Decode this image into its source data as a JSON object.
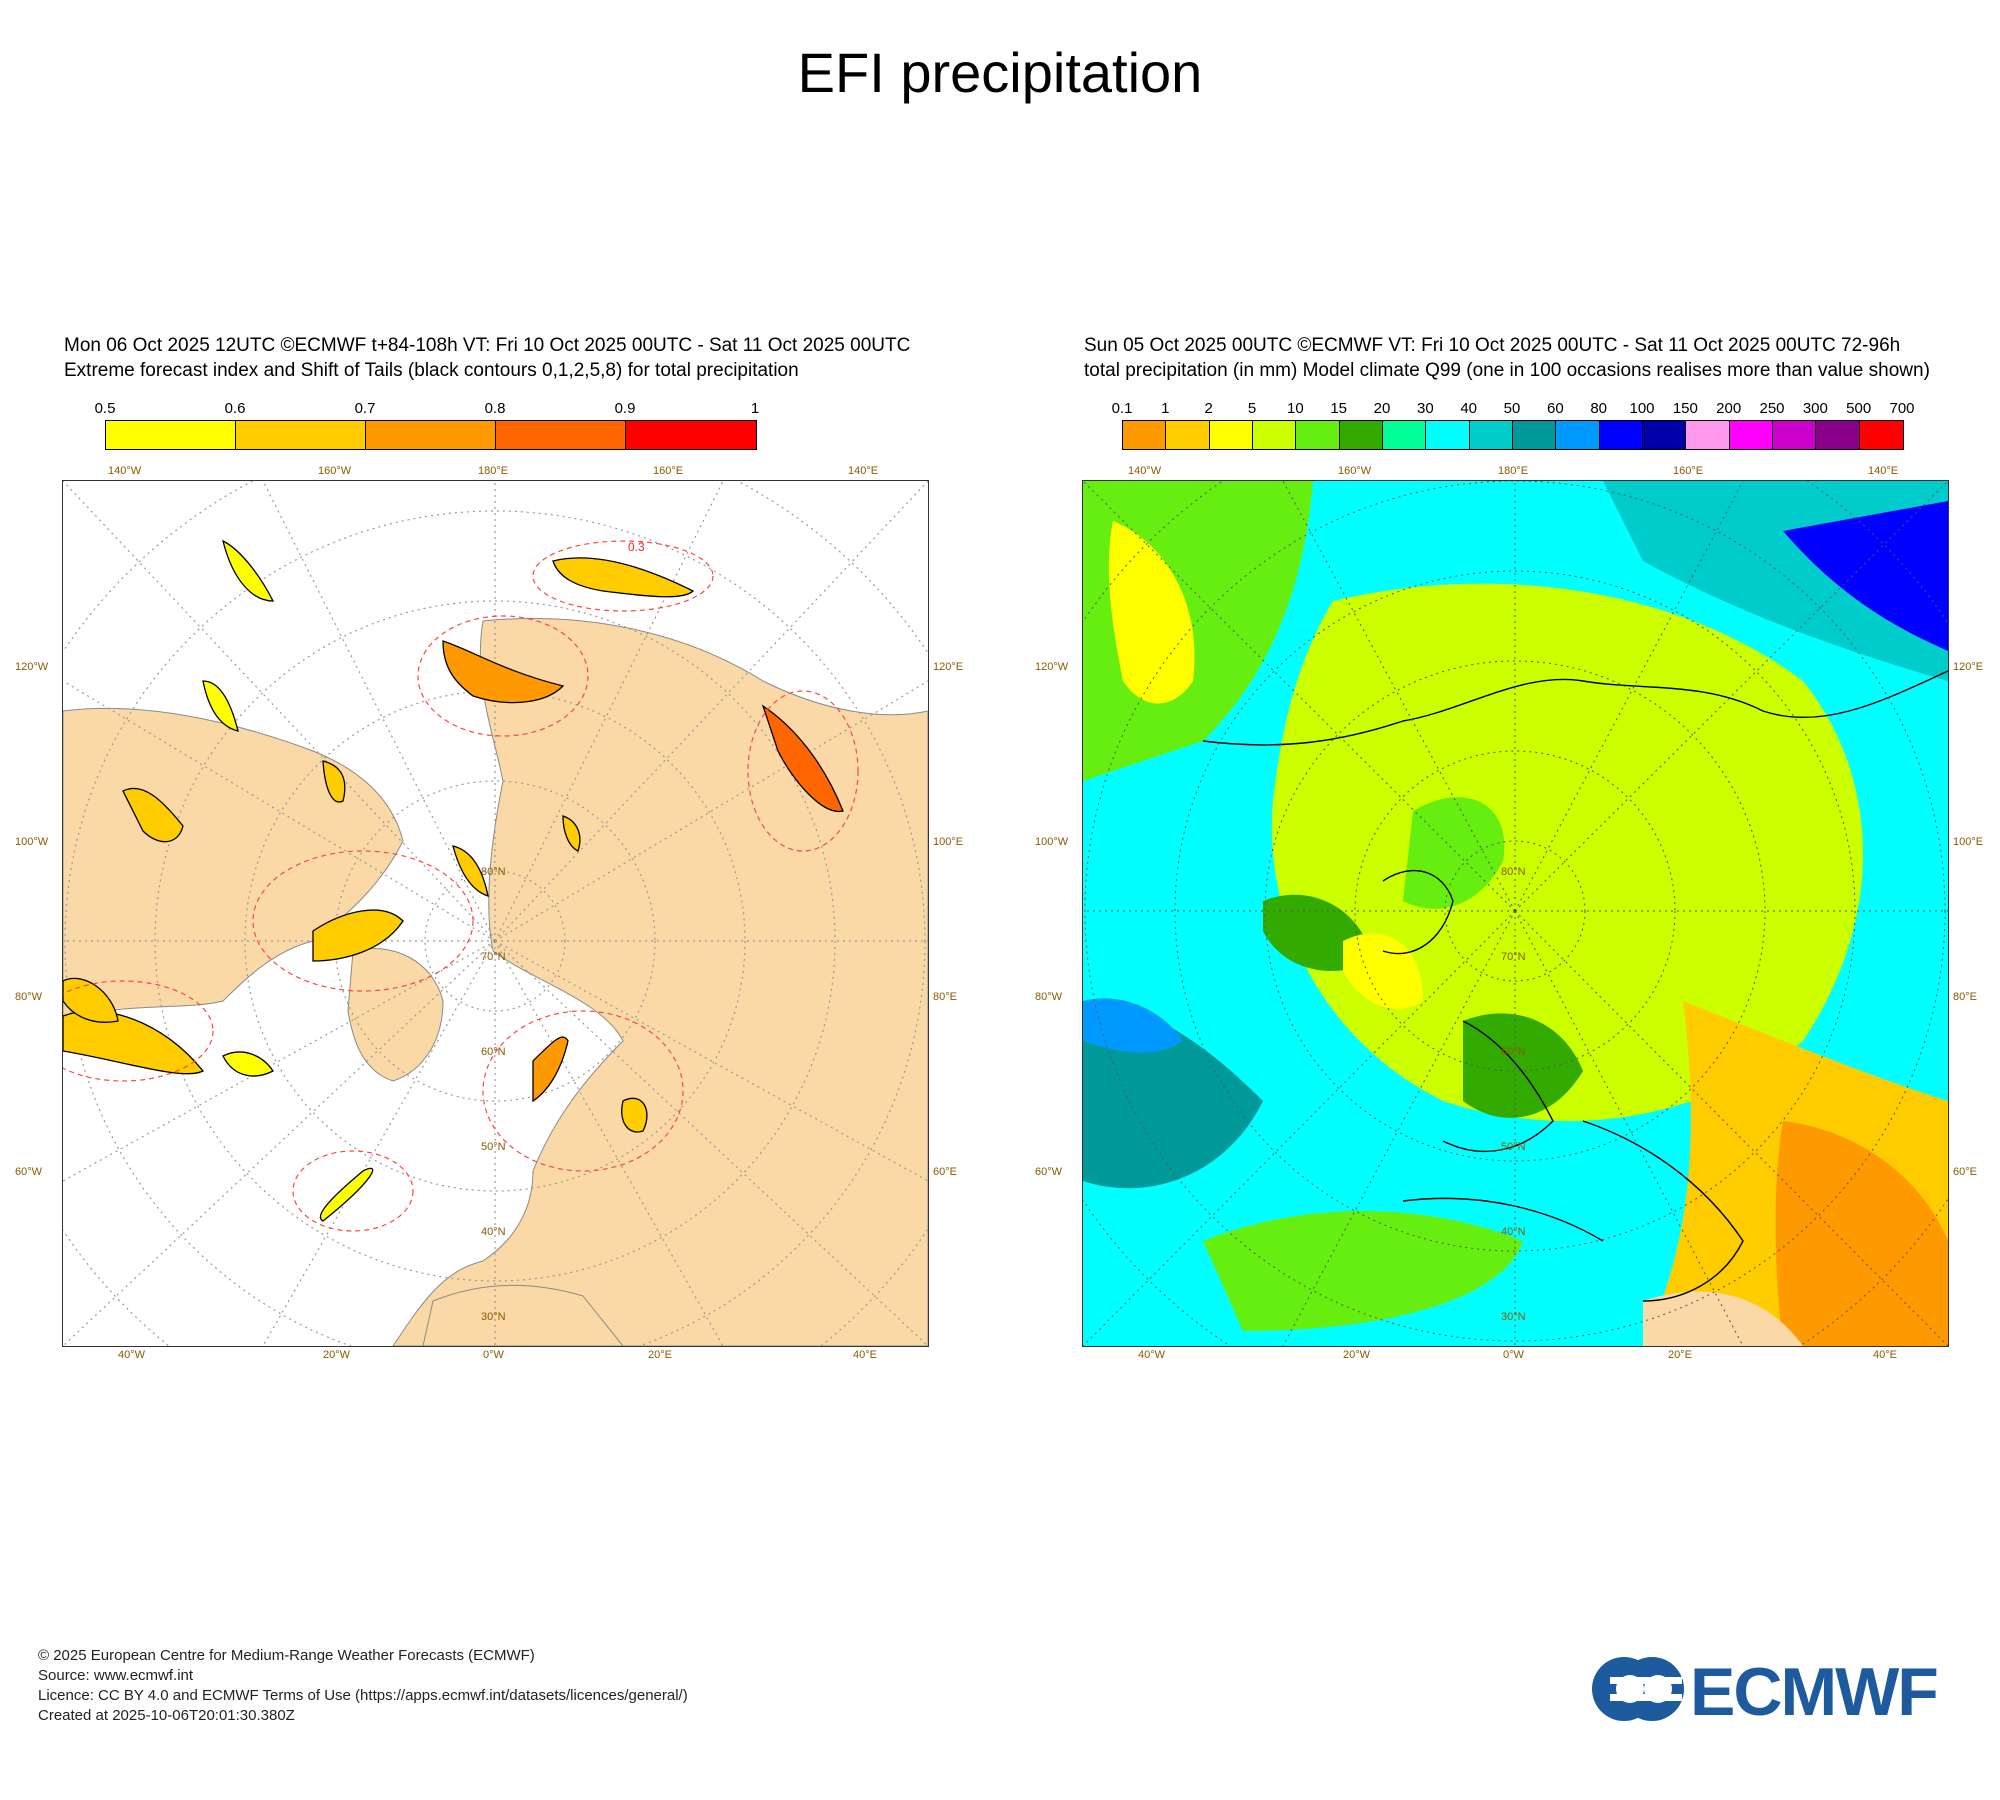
{
  "title": "EFI precipitation",
  "panels": [
    {
      "title_line1": "Mon 06 Oct 2025 12UTC ©ECMWF t+84-108h  VT: Fri 10 Oct 2025 00UTC - Sat 11 Oct 2025 00UTC",
      "title_line2": "Extreme forecast index and Shift of Tails (black contours 0,1,2,5,8) for total precipitation",
      "colorbar": {
        "ticks": [
          "0.5",
          "0.6",
          "0.7",
          "0.8",
          "0.9",
          "1"
        ],
        "colors": [
          "#ffff00",
          "#ffcc00",
          "#ff9900",
          "#ff6600",
          "#ff0000"
        ]
      }
    },
    {
      "title_line1": "Sun 05 Oct 2025 00UTC ©ECMWF VT: Fri 10 Oct 2025 00UTC - Sat 11 Oct 2025 00UTC   72-96h",
      "title_line2": "total precipitation (in mm)  Model climate Q99 (one in 100 occasions realises more than value shown)",
      "colorbar": {
        "ticks": [
          "0.1",
          "1",
          "2",
          "5",
          "10",
          "15",
          "20",
          "30",
          "40",
          "50",
          "60",
          "80",
          "100",
          "150",
          "200",
          "250",
          "300",
          "500",
          "700"
        ],
        "colors": [
          "#ff9900",
          "#ffcc00",
          "#ffff00",
          "#ccff00",
          "#66ee11",
          "#33aa00",
          "#00ff99",
          "#00ffff",
          "#00cccc",
          "#009999",
          "#0099ff",
          "#0000ff",
          "#0000aa",
          "#ff99ee",
          "#ff00ff",
          "#cc00cc",
          "#880088",
          "#ff0000"
        ]
      }
    }
  ],
  "map_labels": {
    "top": [
      "140°W",
      "160°W",
      "180°E",
      "160°E",
      "140°E"
    ],
    "bottom": [
      "40°W",
      "20°W",
      "0°W",
      "20°E",
      "40°E"
    ],
    "left": [
      "120°W",
      "100°W",
      "80°W",
      "60°W"
    ],
    "right": [
      "120°E",
      "100°E",
      "80°E",
      "60°E"
    ],
    "lat": [
      "30°N",
      "40°N",
      "50°N",
      "60°N",
      "70°N",
      "80°N"
    ]
  },
  "efi_contour_label": "0.3",
  "footer": {
    "line1": "© 2025 European Centre for Medium-Range Weather Forecasts (ECMWF)",
    "line2": "Source: www.ecmwf.int",
    "line3": "Licence: CC BY 4.0 and ECMWF Terms of Use (https://apps.ecmwf.int/datasets/licences/general/)",
    "line4": "Created at 2025-10-06T20:01:30.380Z"
  },
  "logo": {
    "text": "ECMWF",
    "color": "#1d5a9e"
  },
  "colors": {
    "land": "#fbd9a6",
    "ocean": "#ffffff",
    "grid": "#999999"
  }
}
